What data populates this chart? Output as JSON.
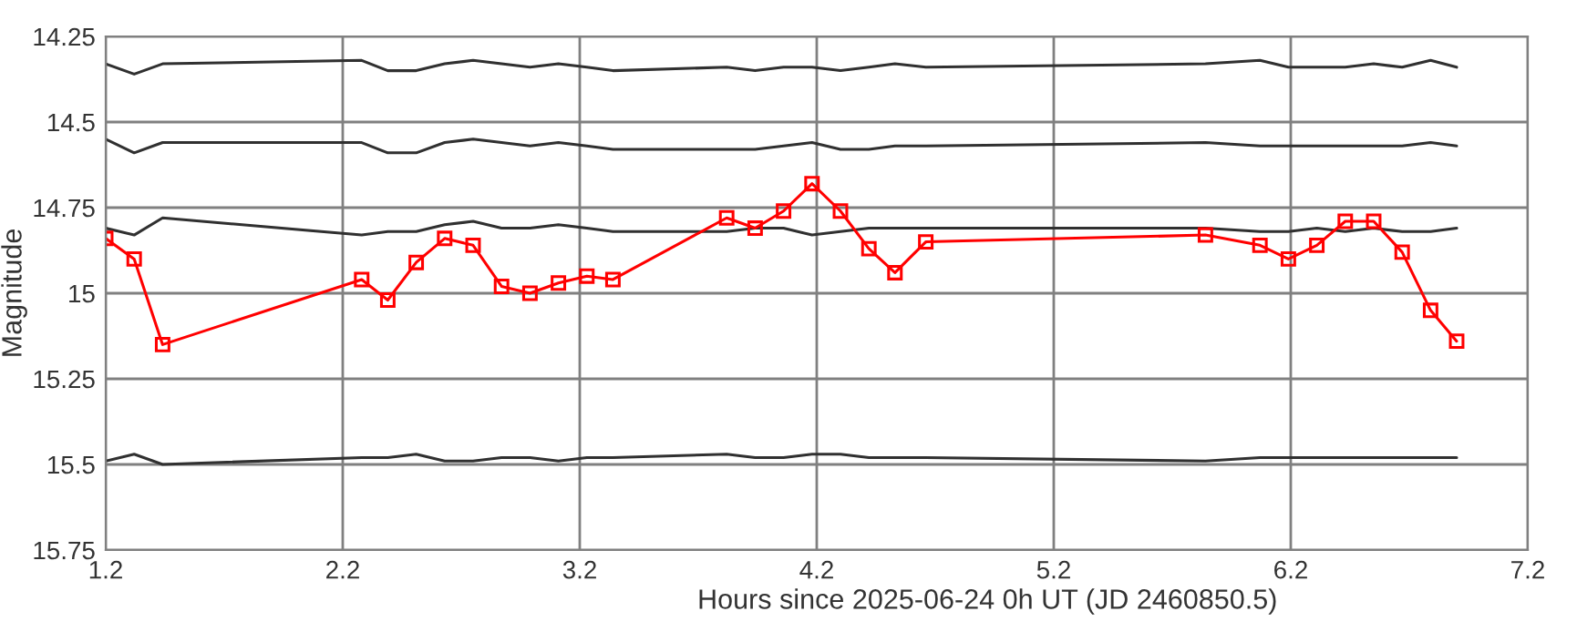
{
  "chart_data": {
    "type": "line",
    "xlabel": "Hours since 2025-06-24 0h UT (JD 2460850.5)",
    "ylabel": "Magnitude",
    "x": [
      1.2,
      1.32,
      1.44,
      2.28,
      2.39,
      2.51,
      2.63,
      2.75,
      2.87,
      2.99,
      3.11,
      3.23,
      3.34,
      3.82,
      3.94,
      4.06,
      4.18,
      4.3,
      4.42,
      4.53,
      4.66,
      5.84,
      6.07,
      6.19,
      6.31,
      6.43,
      6.55,
      6.67,
      6.79,
      6.9
    ],
    "series": [
      {
        "color": "#303030",
        "marker": "none",
        "values": [
          14.33,
          14.36,
          14.33,
          14.32,
          14.35,
          14.35,
          14.33,
          14.32,
          14.33,
          14.34,
          14.33,
          14.34,
          14.35,
          14.34,
          14.35,
          14.34,
          14.34,
          14.35,
          14.34,
          14.33,
          14.34,
          14.33,
          14.32,
          14.34,
          14.34,
          14.34,
          14.33,
          14.34,
          14.32,
          14.34
        ]
      },
      {
        "color": "#303030",
        "marker": "none",
        "values": [
          14.55,
          14.59,
          14.56,
          14.56,
          14.59,
          14.59,
          14.56,
          14.55,
          14.56,
          14.57,
          14.56,
          14.57,
          14.58,
          14.58,
          14.58,
          14.57,
          14.56,
          14.58,
          14.58,
          14.57,
          14.57,
          14.56,
          14.57,
          14.57,
          14.57,
          14.57,
          14.57,
          14.57,
          14.56,
          14.57
        ]
      },
      {
        "color": "#303030",
        "marker": "none",
        "values": [
          14.81,
          14.83,
          14.78,
          14.83,
          14.82,
          14.82,
          14.8,
          14.79,
          14.81,
          14.81,
          14.8,
          14.81,
          14.82,
          14.82,
          14.81,
          14.81,
          14.83,
          14.82,
          14.81,
          14.81,
          14.81,
          14.81,
          14.82,
          14.82,
          14.81,
          14.82,
          14.81,
          14.82,
          14.82,
          14.81
        ]
      },
      {
        "color": "#303030",
        "marker": "none",
        "values": [
          15.49,
          15.47,
          15.5,
          15.48,
          15.48,
          15.47,
          15.49,
          15.49,
          15.48,
          15.48,
          15.49,
          15.48,
          15.48,
          15.47,
          15.48,
          15.48,
          15.47,
          15.47,
          15.48,
          15.48,
          15.48,
          15.49,
          15.48,
          15.48,
          15.48,
          15.48,
          15.48,
          15.48,
          15.48,
          15.48
        ]
      },
      {
        "color": "#ff0000",
        "marker": "square",
        "values": [
          14.84,
          14.9,
          15.15,
          14.96,
          15.02,
          14.91,
          14.84,
          14.86,
          14.98,
          15.0,
          14.97,
          14.95,
          14.96,
          14.78,
          14.81,
          14.76,
          14.68,
          14.76,
          14.87,
          14.94,
          14.85,
          14.83,
          14.86,
          14.9,
          14.86,
          14.79,
          14.79,
          14.88,
          15.05,
          15.14
        ]
      }
    ],
    "xlim": [
      1.2,
      7.2
    ],
    "xticks": [
      1.2,
      2.2,
      3.2,
      4.2,
      5.2,
      6.2,
      7.2
    ],
    "ylim": [
      15.75,
      14.25
    ],
    "yticks": [
      14.25,
      14.5,
      14.75,
      15,
      15.25,
      15.5,
      15.75
    ],
    "grid": true,
    "line_style": "solid"
  }
}
